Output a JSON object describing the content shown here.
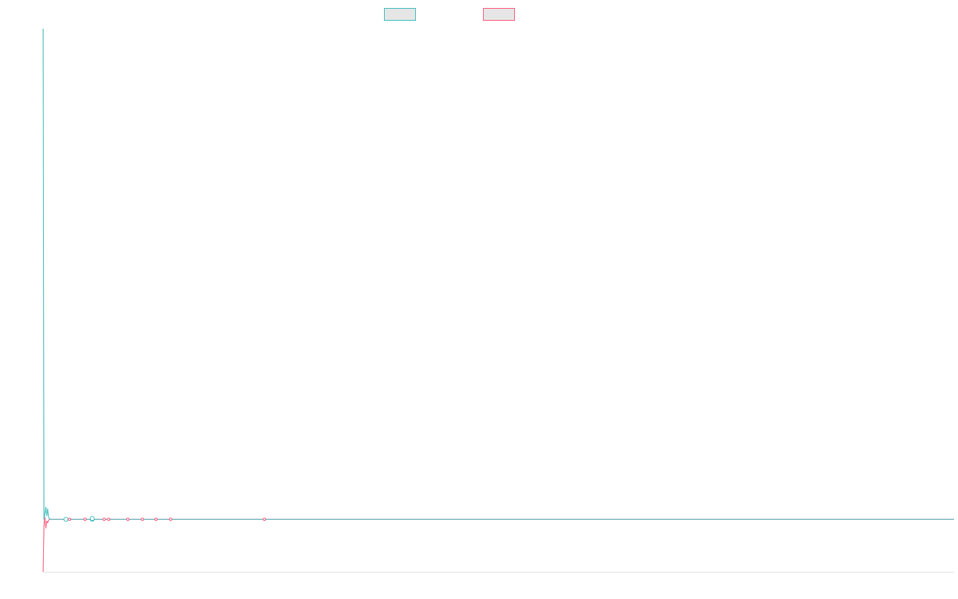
{
  "chart_data": {
    "type": "line",
    "title": "",
    "xlabel": "",
    "ylabel": "",
    "x": [
      0,
      1,
      2,
      3,
      4,
      5,
      6,
      7,
      8,
      9,
      10,
      11,
      12,
      13,
      14,
      15,
      16,
      17,
      18,
      19,
      20,
      21,
      22,
      23,
      24,
      25,
      26,
      27,
      28,
      29,
      30,
      31,
      32,
      33,
      34,
      35,
      36,
      37,
      38,
      39,
      40,
      60,
      80,
      100,
      120,
      140,
      160,
      180,
      200,
      220,
      240,
      260,
      280,
      300,
      320,
      340,
      360,
      380,
      400,
      420,
      440,
      460,
      480,
      500,
      520,
      540,
      560,
      580,
      600,
      620,
      640,
      660,
      680,
      700,
      720,
      740,
      760,
      780,
      800,
      820,
      840,
      860,
      880,
      900,
      920,
      940,
      960,
      980,
      1000
    ],
    "xlim": [
      0,
      1000
    ],
    "ylim": [
      -60,
      560
    ],
    "series": [
      {
        "color": "#4bc0c0",
        "values": [
          560,
          0,
          6,
          14,
          4,
          12,
          2,
          1,
          0,
          0,
          0,
          0,
          0,
          0,
          0,
          0,
          0,
          0,
          0,
          0,
          0,
          0,
          0,
          0,
          0,
          0,
          0,
          0,
          0,
          0,
          0,
          0,
          0,
          0,
          0,
          0,
          0,
          0,
          0,
          0,
          0,
          0,
          0,
          0,
          0,
          0,
          0,
          0,
          0,
          0,
          0,
          0,
          0,
          0,
          0,
          0,
          0,
          0,
          0,
          0,
          0,
          0,
          0,
          0,
          0,
          0,
          0,
          0,
          0,
          0,
          0,
          0,
          0,
          0,
          0,
          0,
          0,
          0,
          0,
          0,
          0,
          0,
          0,
          0,
          0,
          0,
          0,
          0,
          0
        ]
      },
      {
        "color": "#ff6384",
        "values": [
          -60,
          -8,
          2,
          -10,
          -2,
          -4,
          -1,
          0,
          0,
          0,
          0,
          0,
          0,
          0,
          0,
          0,
          0,
          0,
          0,
          0,
          0,
          0,
          0,
          0,
          0,
          0,
          0,
          0,
          0,
          0,
          0,
          0,
          0,
          0,
          0,
          0,
          0,
          0,
          0,
          0,
          0,
          0,
          0,
          0,
          0,
          0,
          0,
          0,
          0,
          0,
          0,
          0,
          0,
          0,
          0,
          0,
          0,
          0,
          0,
          0,
          0,
          0,
          0,
          0,
          0,
          0,
          0,
          0,
          0,
          0,
          0,
          0,
          0,
          0,
          0,
          0,
          0,
          0,
          0,
          0,
          0,
          0,
          0,
          0,
          0,
          0,
          0,
          0,
          0
        ]
      }
    ],
    "markers": [
      {
        "x": 25,
        "y": 0,
        "series": 0
      },
      {
        "x": 29,
        "y": 0,
        "series": 1
      },
      {
        "x": 46,
        "y": 0,
        "series": 1
      },
      {
        "x": 54,
        "y": 0,
        "series": 0
      },
      {
        "x": 54,
        "y": 1,
        "series": 0
      },
      {
        "x": 67,
        "y": 0,
        "series": 1
      },
      {
        "x": 72,
        "y": 0,
        "series": 1
      },
      {
        "x": 93,
        "y": 0,
        "series": 1
      },
      {
        "x": 109,
        "y": 0,
        "series": 1
      },
      {
        "x": 124,
        "y": 0,
        "series": 1
      },
      {
        "x": 140,
        "y": 0,
        "series": 1
      },
      {
        "x": 243,
        "y": 0,
        "series": 1
      }
    ],
    "legend": {
      "placement": "top"
    },
    "grid": false
  }
}
